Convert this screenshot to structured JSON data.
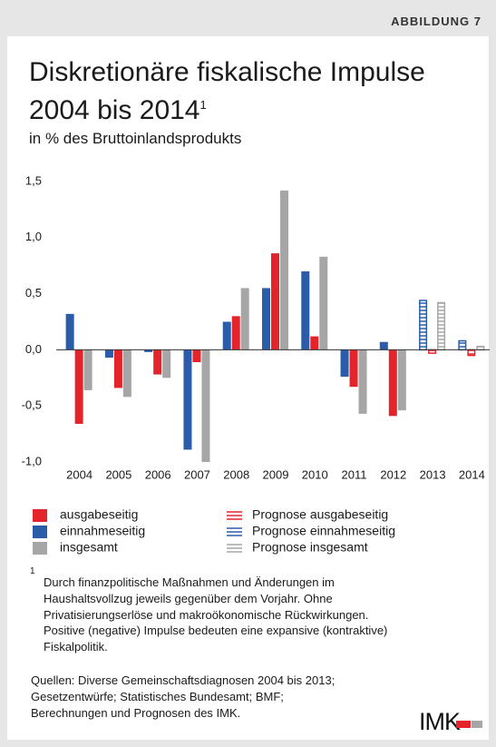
{
  "header": {
    "label": "ABBILDUNG 7"
  },
  "title_lines": [
    "Diskretionäre fiskalische Impulse",
    "2004 bis 2014"
  ],
  "title_note": "1",
  "subtitle": "in % des Bruttoinlandsprodukts",
  "chart_data": {
    "type": "bar",
    "categories": [
      "2004",
      "2005",
      "2006",
      "2007",
      "2008",
      "2009",
      "2010",
      "2011",
      "2012",
      "2013",
      "2014"
    ],
    "series": [
      {
        "name": "ausgabeseitig",
        "color": "#e3242b",
        "pattern": "solid",
        "values": [
          -0.66,
          -0.34,
          -0.22,
          -0.11,
          0.3,
          0.86,
          0.12,
          -0.33,
          -0.59,
          null,
          null
        ]
      },
      {
        "name": "einnahmeseitig",
        "color": "#2a5caa",
        "pattern": "solid",
        "values": [
          0.32,
          -0.07,
          -0.02,
          -0.89,
          0.25,
          0.55,
          0.7,
          -0.24,
          0.07,
          null,
          null
        ]
      },
      {
        "name": "insgesamt",
        "color": "#a6a6a6",
        "pattern": "solid",
        "values": [
          -0.36,
          -0.42,
          -0.25,
          -1.0,
          0.55,
          1.42,
          0.83,
          -0.57,
          -0.54,
          null,
          null
        ]
      },
      {
        "name": "Prognose ausgabeseitig",
        "color": "#e3242b",
        "pattern": "hatched",
        "values": [
          null,
          null,
          null,
          null,
          null,
          null,
          null,
          null,
          null,
          -0.03,
          -0.05
        ]
      },
      {
        "name": "Prognose einnahmeseitig",
        "color": "#2a5caa",
        "pattern": "hatched",
        "values": [
          null,
          null,
          null,
          null,
          null,
          null,
          null,
          null,
          null,
          0.44,
          0.08
        ]
      },
      {
        "name": "Prognose insgesamt",
        "color": "#a6a6a6",
        "pattern": "hatched",
        "values": [
          null,
          null,
          null,
          null,
          null,
          null,
          null,
          null,
          null,
          0.42,
          0.03
        ]
      }
    ],
    "ylim": [
      -1.0,
      1.5
    ],
    "yticks": [
      {
        "value": -1.0,
        "label": "-1,0"
      },
      {
        "value": -0.5,
        "label": "-0,5"
      },
      {
        "value": 0,
        "label": "0,0"
      },
      {
        "value": 0.5,
        "label": "0,5"
      },
      {
        "value": 1.0,
        "label": "1,0"
      },
      {
        "value": 1.5,
        "label": "1,5"
      }
    ],
    "grid": false
  },
  "footnote": {
    "marker": "1",
    "lines": [
      "Durch finanzpolitische Maßnahmen und Änderungen im",
      "Haushaltsvollzug jeweils gegenüber dem Vorjahr. Ohne",
      "Privatisierungserlöse und makroökonomische Rückwirkungen.",
      "Positive (negative) Impulse bedeuten eine expansive (kontraktive)",
      "Fiskalpolitik."
    ]
  },
  "sources": [
    "Quellen: Diverse Gemeinschaftsdiagnosen 2004 bis 2013;",
    "Gesetzentwürfe; Statistisches Bundesamt; BMF;",
    "Berechnungen und Prognosen des IMK."
  ],
  "logo": "IMK"
}
